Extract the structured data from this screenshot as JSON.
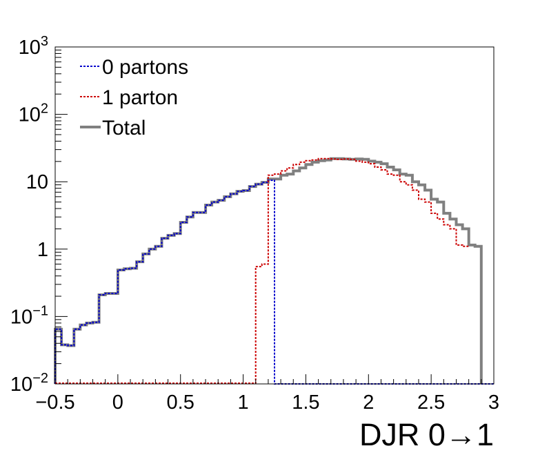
{
  "chart_data": {
    "type": "line",
    "title": "",
    "xlabel": "DJR 0→1",
    "ylabel": "",
    "xlim": [
      -0.5,
      3.0
    ],
    "ylim": [
      0.01,
      1000
    ],
    "yscale": "log",
    "grid": false,
    "legend_position": "top-left",
    "bin_width": 0.05,
    "x_ticks": [
      {
        "value": -0.5,
        "label": "−0.5"
      },
      {
        "value": 0,
        "label": "0"
      },
      {
        "value": 0.5,
        "label": "0.5"
      },
      {
        "value": 1,
        "label": "1"
      },
      {
        "value": 1.5,
        "label": "1.5"
      },
      {
        "value": 2,
        "label": "2"
      },
      {
        "value": 2.5,
        "label": "2.5"
      },
      {
        "value": 3,
        "label": "3"
      }
    ],
    "y_ticks": [
      {
        "value": 0.01,
        "base": "10",
        "exp": "−2"
      },
      {
        "value": 0.1,
        "base": "10",
        "exp": "−1"
      },
      {
        "value": 1,
        "base": "1",
        "exp": ""
      },
      {
        "value": 10,
        "base": "10",
        "exp": ""
      },
      {
        "value": 100,
        "base": "10",
        "exp": "2"
      },
      {
        "value": 1000,
        "base": "10",
        "exp": "3"
      }
    ],
    "series": [
      {
        "name": "0 partons",
        "color": "#0000cc",
        "style": "dotted",
        "x_start": -0.5,
        "values": [
          0.065,
          0.038,
          0.037,
          0.065,
          0.075,
          0.08,
          0.082,
          0.21,
          0.22,
          0.22,
          0.49,
          0.51,
          0.52,
          0.65,
          0.85,
          1.0,
          1.1,
          1.45,
          1.6,
          1.7,
          2.5,
          3.0,
          3.5,
          3.5,
          4.5,
          5.0,
          5.3,
          6.0,
          6.6,
          7.2,
          7.4,
          8.5,
          9.2,
          9.8,
          10.5,
          0.01
        ]
      },
      {
        "name": "1 parton",
        "color": "#cc0000",
        "style": "dotted",
        "x_start": 1.1,
        "values": [
          0.55,
          0.6,
          12.5,
          13.0,
          14.5,
          16.0,
          18.0,
          19.5,
          20.5,
          21.0,
          22.0,
          22.0,
          21.8,
          21.5,
          21.8,
          21.5,
          20.2,
          19.5,
          18.5,
          16.5,
          15.0,
          13.0,
          12.5,
          10.0,
          9.0,
          7.5,
          5.5,
          5.0,
          3.4,
          2.8,
          2.3,
          2.0,
          1.15,
          1.1
        ]
      },
      {
        "name": "Total",
        "color": "#808080",
        "style": "solid",
        "x_start": -0.5,
        "values": [
          0.065,
          0.038,
          0.037,
          0.065,
          0.075,
          0.08,
          0.082,
          0.21,
          0.22,
          0.22,
          0.49,
          0.51,
          0.52,
          0.65,
          0.85,
          1.0,
          1.1,
          1.45,
          1.6,
          1.7,
          2.5,
          3.0,
          3.5,
          3.5,
          4.5,
          5.0,
          5.3,
          6.0,
          6.6,
          7.2,
          7.4,
          8.5,
          9.2,
          9.8,
          11.0,
          11.0,
          12.5,
          13.0,
          14.5,
          16.0,
          18.0,
          19.5,
          20.5,
          21.0,
          22.0,
          22.0,
          21.8,
          21.5,
          21.8,
          21.5,
          20.2,
          19.5,
          18.5,
          16.5,
          15.0,
          13.0,
          12.5,
          10.0,
          9.0,
          7.5,
          5.5,
          5.0,
          3.4,
          2.8,
          2.3,
          2.0,
          1.15,
          1.1
        ]
      }
    ]
  }
}
